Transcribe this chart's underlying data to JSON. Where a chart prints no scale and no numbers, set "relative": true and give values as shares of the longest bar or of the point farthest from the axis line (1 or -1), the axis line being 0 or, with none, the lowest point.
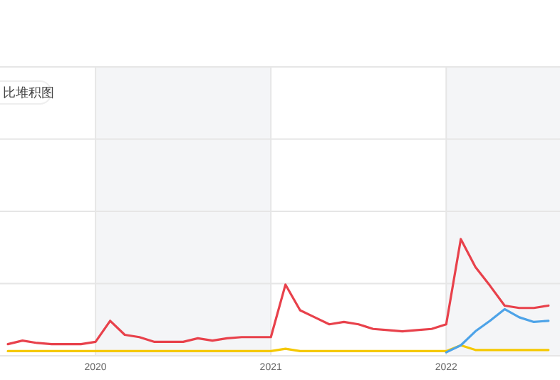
{
  "chart_data": {
    "type": "line",
    "relative": true,
    "tick_labels": "x",
    "grid": true,
    "marker": "none",
    "line_style": "solid",
    "x": [
      "2019-07",
      "2019-08",
      "2019-09",
      "2019-10",
      "2019-11",
      "2019-12",
      "2020-01",
      "2020-02",
      "2020-03",
      "2020-04",
      "2020-05",
      "2020-06",
      "2020-07",
      "2020-08",
      "2020-09",
      "2020-10",
      "2020-11",
      "2020-12",
      "2021-01",
      "2021-02",
      "2021-03",
      "2021-04",
      "2021-05",
      "2021-06",
      "2021-07",
      "2021-08",
      "2021-09",
      "2021-10",
      "2021-11",
      "2021-12",
      "2022-01",
      "2022-02",
      "2022-03",
      "2022-04",
      "2022-05",
      "2022-06",
      "2022-07",
      "2022-08"
    ],
    "xlim": [
      "2019-06-15",
      "2022-08-25"
    ],
    "xticks": [
      {
        "value": "2020-01",
        "label": "2020"
      },
      {
        "value": "2021-01",
        "label": "2021"
      },
      {
        "value": "2022-01",
        "label": "2022"
      }
    ],
    "annotations": [
      "比堆积图"
    ],
    "series": [
      {
        "color": "#e8414b",
        "values": [
          0.1,
          0.13,
          0.11,
          0.1,
          0.1,
          0.1,
          0.12,
          0.3,
          0.18,
          0.16,
          0.12,
          0.12,
          0.12,
          0.15,
          0.13,
          0.15,
          0.16,
          0.16,
          0.16,
          0.61,
          0.39,
          0.33,
          0.27,
          0.29,
          0.27,
          0.23,
          0.22,
          0.21,
          0.22,
          0.23,
          0.27,
          1,
          0.76,
          0.6,
          0.43,
          0.41,
          0.41,
          0.43
        ]
      },
      {
        "color": "#4da3e8",
        "values": [
          null,
          null,
          null,
          null,
          null,
          null,
          null,
          null,
          null,
          null,
          null,
          null,
          null,
          null,
          null,
          null,
          null,
          null,
          null,
          null,
          null,
          null,
          null,
          null,
          null,
          null,
          null,
          null,
          null,
          null,
          0.03,
          0.09,
          0.21,
          0.3,
          0.4,
          0.33,
          0.29,
          0.3
        ]
      },
      {
        "color": "#f5c800",
        "values": [
          0.04,
          0.04,
          0.04,
          0.04,
          0.04,
          0.04,
          0.04,
          0.04,
          0.04,
          0.04,
          0.04,
          0.04,
          0.04,
          0.04,
          0.04,
          0.04,
          0.04,
          0.04,
          0.04,
          0.06,
          0.04,
          0.04,
          0.04,
          0.04,
          0.04,
          0.04,
          0.04,
          0.04,
          0.04,
          0.04,
          0.04,
          0.09,
          0.05,
          0.05,
          0.05,
          0.05,
          0.05,
          0.05
        ]
      }
    ]
  }
}
